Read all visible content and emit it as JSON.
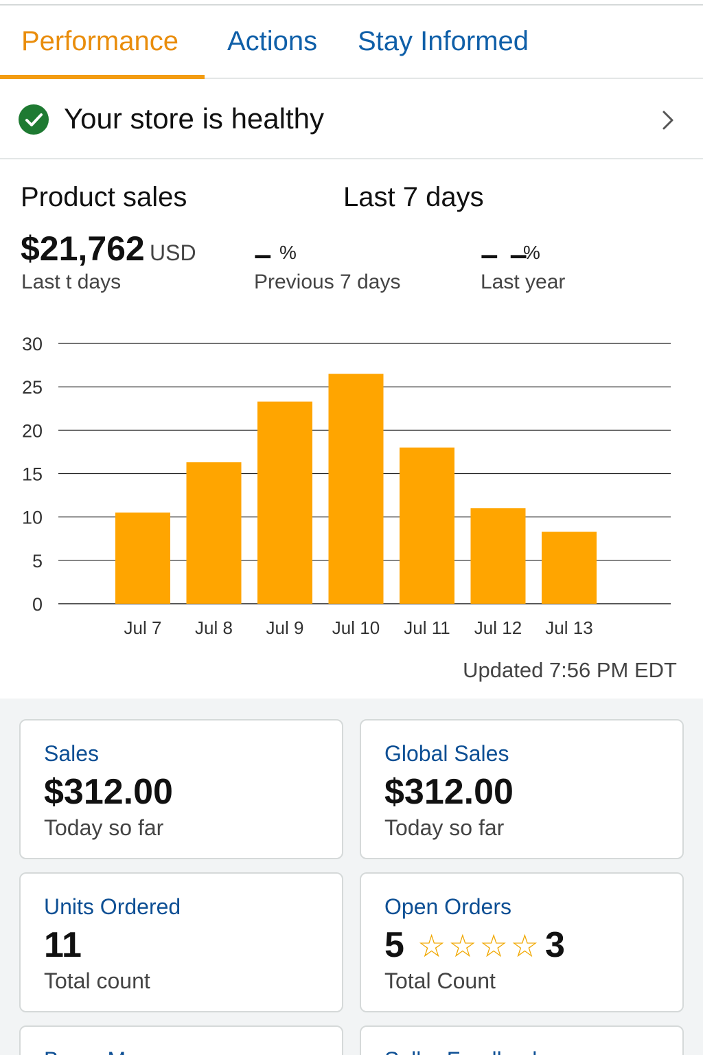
{
  "tabs": [
    {
      "label": "Performance",
      "active": true
    },
    {
      "label": "Actions",
      "active": false
    },
    {
      "label": "Stay Informed",
      "active": false
    }
  ],
  "health": {
    "text": "Your store is healthy",
    "icon": "check-circle-icon",
    "status_color": "#1e7a32"
  },
  "product_sales": {
    "title": "Product sales",
    "period": "Last 7 days",
    "amount": "$21,762",
    "currency": "USD",
    "sub": "Last t days",
    "comparisons": [
      {
        "value": "–",
        "unit": "%",
        "label": "Previous 7 days"
      },
      {
        "value": "– –",
        "unit": "%",
        "label": "Last year"
      }
    ]
  },
  "chart_data": {
    "type": "bar",
    "categories": [
      "Jul 7",
      "Jul 8",
      "Jul 9",
      "Jul 10",
      "Jul 11",
      "Jul 12",
      "Jul 13"
    ],
    "values": [
      10.5,
      16.3,
      23.3,
      26.5,
      18.0,
      11.0,
      8.3
    ],
    "ylim": [
      0,
      30
    ],
    "yticks": [
      0,
      5,
      10,
      15,
      20,
      25,
      30
    ],
    "grid": true,
    "bar_color": "#ffa500"
  },
  "updated": "Updated 7:56 PM EDT",
  "cards": {
    "sales": {
      "title": "Sales",
      "value": "$312.00",
      "sub": "Today so far"
    },
    "global_sales": {
      "title": "Global Sales",
      "value": "$312.00",
      "sub": "Today so far"
    },
    "units_ordered": {
      "title": "Units Ordered",
      "value": "11",
      "sub": "Total count"
    },
    "open_orders": {
      "title": "Open Orders",
      "value": "5",
      "stars": 4,
      "star_count": "3",
      "sub": "Total Count",
      "star_color": "#f0a700"
    },
    "buyer_messages": {
      "title": "Buyer Messages"
    },
    "seller_feedback": {
      "title": "Seller Feedback"
    }
  },
  "colors": {
    "accent_orange": "#f39c12",
    "link_blue": "#0f5fa8",
    "card_title_blue": "#0d4f94"
  }
}
